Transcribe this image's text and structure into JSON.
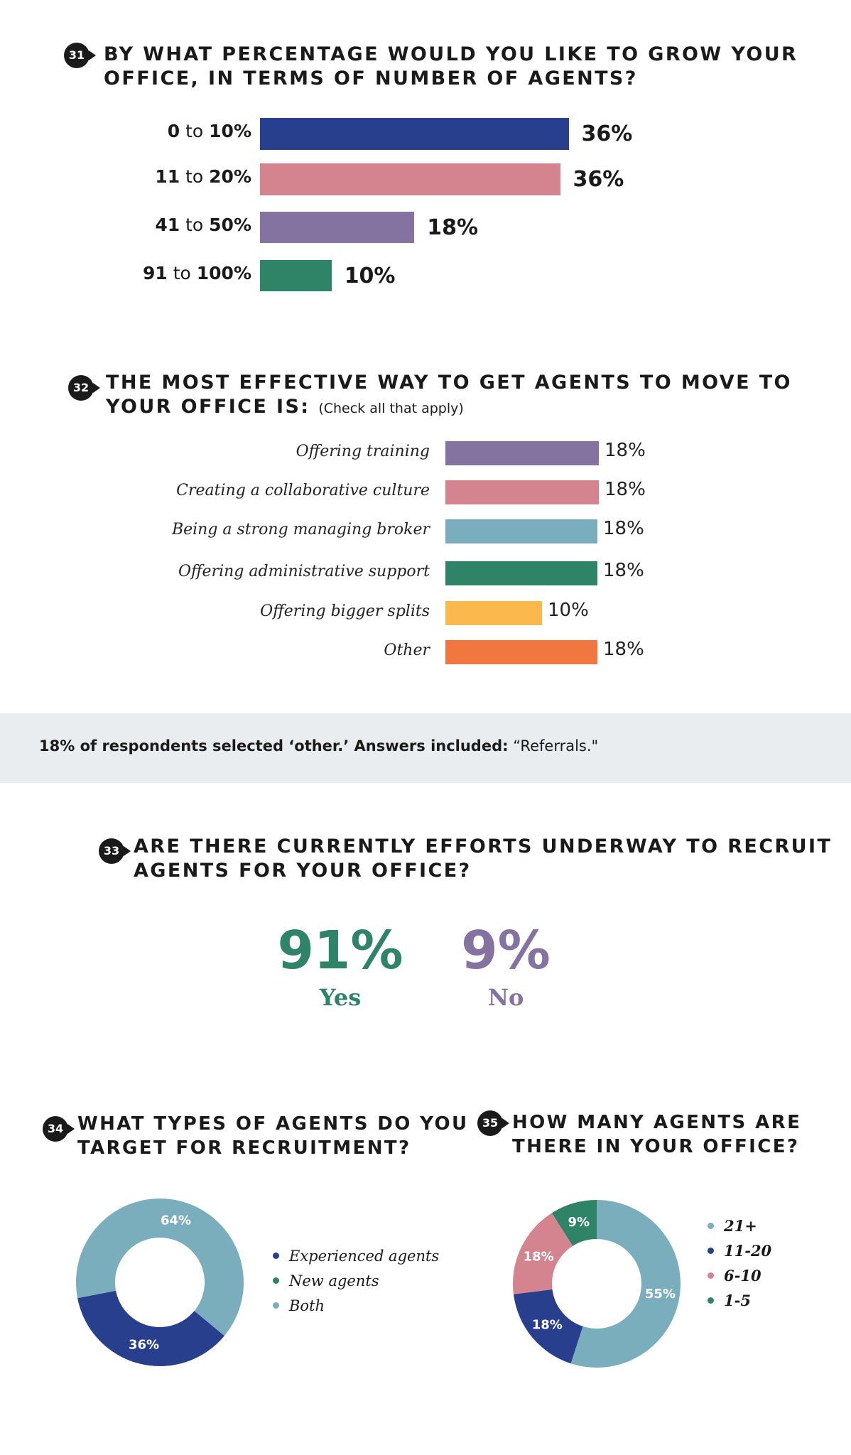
{
  "q31": {
    "number": "31",
    "title_line1": "BY WHAT PERCENTAGE WOULD YOU LIKE TO GROW YOUR",
    "title_line2": "OFFICE, IN TERMS OF NUMBER OF AGENTS?"
  },
  "q32": {
    "number": "32",
    "title_line1": "THE MOST EFFECTIVE WAY TO GET AGENTS TO MOVE TO",
    "title_line2": "YOUR OFFICE IS:",
    "note": "(Check all that apply)"
  },
  "other_note": {
    "bold": "18% of respondents selected ‘other.’ Answers included:",
    "text": "“Referrals.\""
  },
  "q33": {
    "number": "33",
    "title_line1": "ARE THERE CURRENTLY EFFORTS UNDERWAY TO RECRUIT",
    "title_line2": "AGENTS FOR YOUR OFFICE?",
    "yes_pct": "91%",
    "yes_label": "Yes",
    "no_pct": "9%",
    "no_label": "No",
    "yes_color": "#2f8468",
    "no_color": "#8473a0"
  },
  "q34": {
    "number": "34",
    "title_line1": "WHAT TYPES OF AGENTS DO YOU",
    "title_line2": "TARGET FOR RECRUITMENT?"
  },
  "q35": {
    "number": "35",
    "title_line1": "HOW MANY AGENTS ARE",
    "title_line2": "THERE IN YOUR OFFICE?"
  },
  "chart_data": [
    {
      "type": "bar",
      "orientation": "horizontal",
      "categories": [
        {
          "from": "0",
          "to": "10%"
        },
        {
          "from": "11",
          "to": "20%"
        },
        {
          "from": "41",
          "to": "50%"
        },
        {
          "from": "91",
          "to": "100%"
        }
      ],
      "category_joiner": "to",
      "values": [
        36,
        36,
        18,
        10
      ],
      "value_labels": [
        "36%",
        "36%",
        "18%",
        "10%"
      ],
      "colors": [
        "#283f8e",
        "#d4848f",
        "#8473a0",
        "#2f8468"
      ],
      "grid": false
    },
    {
      "type": "bar",
      "orientation": "horizontal",
      "categories": [
        "Offering training",
        "Creating a collaborative culture",
        "Being a strong managing broker",
        "Offering administrative support",
        "Offering bigger splits",
        "Other"
      ],
      "values": [
        18,
        18,
        18,
        18,
        10,
        18
      ],
      "value_labels": [
        "18%",
        "18%",
        "18%",
        "18%",
        "10%",
        "18%"
      ],
      "colors": [
        "#8473a0",
        "#d4848f",
        "#7aaebc",
        "#2f8468",
        "#fbb84d",
        "#f27640"
      ],
      "grid": false
    },
    {
      "type": "pie",
      "donut": true,
      "categories": [
        "Experienced agents",
        "New agents",
        "Both"
      ],
      "values": [
        36,
        0,
        64
      ],
      "value_labels": [
        "36%",
        "",
        "64%"
      ],
      "colors": [
        "#283f8e",
        "#2f8468",
        "#7aaebc"
      ],
      "legend": "right"
    },
    {
      "type": "pie",
      "donut": true,
      "categories": [
        "21+",
        "11-20",
        "6-10",
        "1-5"
      ],
      "values": [
        55,
        18,
        18,
        9
      ],
      "value_labels": [
        "55%",
        "18%",
        "18%",
        "9%"
      ],
      "colors": [
        "#7aaebc",
        "#283f8e",
        "#d4848f",
        "#2f8468"
      ],
      "legend": "right"
    }
  ]
}
